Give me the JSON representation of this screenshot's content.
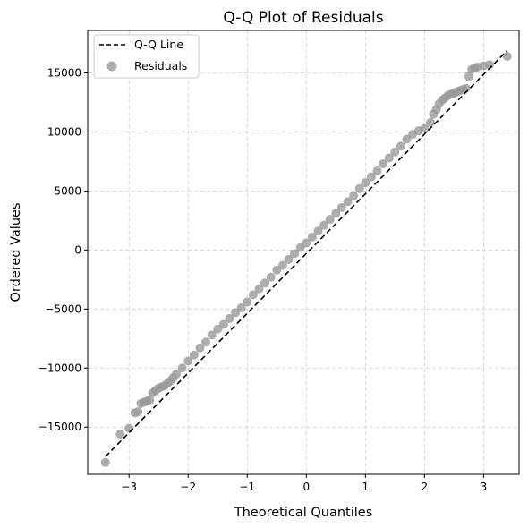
{
  "chart_data": {
    "type": "scatter",
    "title": "Q-Q Plot of Residuals",
    "xlabel": "Theoretical Quantiles",
    "ylabel": "Ordered Values",
    "xlim": [
      -3.7,
      3.6
    ],
    "ylim": [
      -19000,
      18600
    ],
    "xticks": [
      -3,
      -2,
      -1,
      0,
      1,
      2,
      3
    ],
    "xtick_labels": [
      "−3",
      "−2",
      "−1",
      "0",
      "1",
      "2",
      "3"
    ],
    "yticks": [
      -15000,
      -10000,
      -5000,
      0,
      5000,
      10000,
      15000
    ],
    "ytick_labels": [
      "−15000",
      "−10000",
      "−5000",
      "0",
      "5000",
      "10000",
      "15000"
    ],
    "grid": true,
    "legend_position": "upper-left",
    "qq_line": {
      "name": "Q-Q Line",
      "color": "#000000",
      "style": "dashed",
      "x": [
        -3.4,
        3.4
      ],
      "y": [
        -17500,
        16900
      ]
    },
    "residuals": {
      "name": "Residuals",
      "color": "#999999",
      "x": [
        -3.4,
        -3.15,
        -3.0,
        -2.9,
        -2.85,
        -2.8,
        -2.75,
        -2.7,
        -2.65,
        -2.6,
        -2.55,
        -2.5,
        -2.45,
        -2.4,
        -2.35,
        -2.3,
        -2.25,
        -2.2,
        -2.1,
        -2.0,
        -1.9,
        -1.8,
        -1.7,
        -1.6,
        -1.5,
        -1.4,
        -1.3,
        -1.2,
        -1.1,
        -1.0,
        -0.9,
        -0.8,
        -0.7,
        -0.6,
        -0.5,
        -0.4,
        -0.3,
        -0.2,
        -0.1,
        0.0,
        0.1,
        0.2,
        0.3,
        0.4,
        0.5,
        0.6,
        0.7,
        0.8,
        0.9,
        1.0,
        1.1,
        1.2,
        1.3,
        1.4,
        1.5,
        1.6,
        1.7,
        1.8,
        1.9,
        2.0,
        2.1,
        2.15,
        2.2,
        2.25,
        2.3,
        2.35,
        2.4,
        2.45,
        2.5,
        2.55,
        2.6,
        2.65,
        2.7,
        2.75,
        2.8,
        2.85,
        2.9,
        3.0,
        3.1,
        3.4
      ],
      "y": [
        -18000,
        -15600,
        -15100,
        -13800,
        -13700,
        -13000,
        -12900,
        -12800,
        -12700,
        -12100,
        -11900,
        -11700,
        -11600,
        -11500,
        -11300,
        -11100,
        -10800,
        -10500,
        -10000,
        -9400,
        -8900,
        -8300,
        -7800,
        -7200,
        -6700,
        -6300,
        -5800,
        -5300,
        -4900,
        -4400,
        -3800,
        -3300,
        -2800,
        -2300,
        -1700,
        -1300,
        -800,
        -300,
        200,
        600,
        1100,
        1600,
        2100,
        2600,
        3100,
        3600,
        4100,
        4600,
        5200,
        5700,
        6200,
        6700,
        7300,
        7800,
        8300,
        8800,
        9400,
        9800,
        10100,
        10300,
        10800,
        11500,
        11900,
        12400,
        12700,
        12900,
        13100,
        13200,
        13300,
        13400,
        13500,
        13600,
        13700,
        14700,
        15300,
        15400,
        15500,
        15600,
        15700,
        16400
      ]
    }
  }
}
